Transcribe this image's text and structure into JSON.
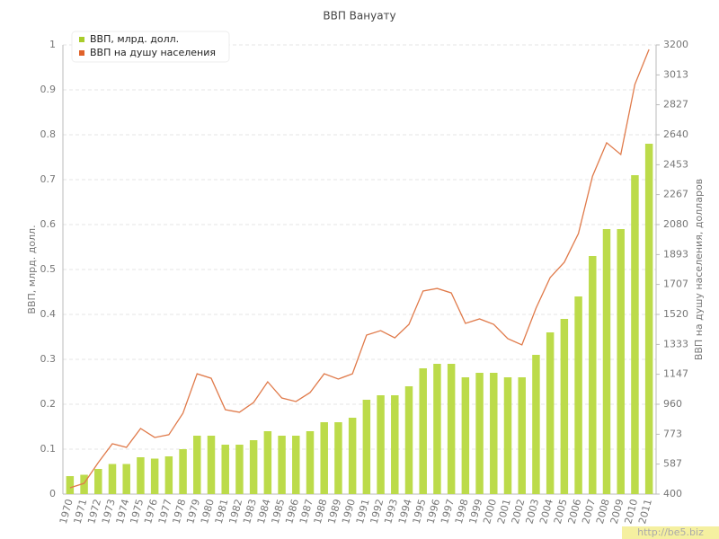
{
  "chart_data": {
    "type": "bar",
    "title": "ВВП Вануату",
    "y_label": "ВВП, млрд. долл.",
    "y2_label": "ВВП на душу населения, долларов",
    "watermark": "http://be5.biz",
    "categories": [
      "1970",
      "1971",
      "1972",
      "1973",
      "1974",
      "1975",
      "1976",
      "1977",
      "1978",
      "1979",
      "1980",
      "1981",
      "1982",
      "1983",
      "1984",
      "1985",
      "1986",
      "1987",
      "1988",
      "1989",
      "1990",
      "1991",
      "1992",
      "1993",
      "1994",
      "1995",
      "1996",
      "1997",
      "1998",
      "1999",
      "2000",
      "2001",
      "2002",
      "2003",
      "2004",
      "2005",
      "2006",
      "2007",
      "2008",
      "2009",
      "2010",
      "2011"
    ],
    "series": [
      {
        "name": "ВВП, млрд. долл.",
        "type": "bar",
        "color": "#bcdb4a",
        "legend_color": "#a8cc2a",
        "values": [
          0.04,
          0.043,
          0.056,
          0.067,
          0.067,
          0.082,
          0.079,
          0.084,
          0.1,
          0.13,
          0.13,
          0.11,
          0.11,
          0.12,
          0.14,
          0.13,
          0.13,
          0.14,
          0.16,
          0.16,
          0.17,
          0.21,
          0.22,
          0.22,
          0.24,
          0.28,
          0.29,
          0.29,
          0.26,
          0.27,
          0.27,
          0.26,
          0.26,
          0.31,
          0.36,
          0.39,
          0.44,
          0.53,
          0.59,
          0.59,
          0.71,
          0.78
        ]
      },
      {
        "name": "ВВП на душу населения",
        "type": "line",
        "axis": "y2",
        "color": "#e07a4a",
        "legend_color": "#e0622a",
        "values": [
          439,
          467,
          596,
          714,
          691,
          809,
          753,
          770,
          904,
          1150,
          1122,
          926,
          910,
          971,
          1100,
          999,
          977,
          1033,
          1150,
          1117,
          1150,
          1391,
          1419,
          1374,
          1458,
          1666,
          1682,
          1654,
          1464,
          1492,
          1458,
          1369,
          1330,
          1559,
          1750,
          1845,
          2024,
          2382,
          2590,
          2517,
          2954,
          3172
        ]
      }
    ],
    "ylim": [
      0,
      1
    ],
    "yticks": [
      0,
      0.1,
      0.2,
      0.3,
      0.4,
      0.5,
      0.6,
      0.7,
      0.8,
      0.9,
      1
    ],
    "y2lim": [
      400,
      3200
    ],
    "y2ticks": [
      400,
      587,
      773,
      960,
      1147,
      1333,
      1520,
      1707,
      1893,
      2080,
      2267,
      2453,
      2640,
      2827,
      3013,
      3200
    ],
    "grid": true
  }
}
